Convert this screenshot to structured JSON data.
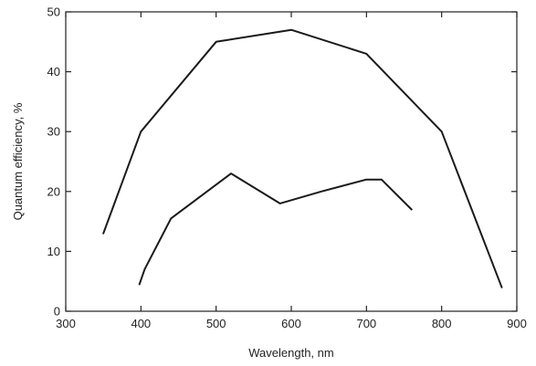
{
  "chart_data": {
    "type": "line",
    "title": "",
    "xlabel": "Wavelength, nm",
    "ylabel": "Quantum efficiency, %",
    "xlim": [
      300,
      900
    ],
    "ylim": [
      0,
      50
    ],
    "xticks": [
      300,
      400,
      500,
      600,
      700,
      800,
      900
    ],
    "yticks": [
      0,
      10,
      20,
      30,
      40,
      50
    ],
    "grid": false,
    "legend": "none",
    "series": [
      {
        "x": [
          350,
          400,
          500,
          600,
          700,
          800,
          880
        ],
        "y": [
          13,
          30,
          45,
          47,
          43,
          30,
          4
        ]
      },
      {
        "x": [
          398,
          405,
          440,
          520,
          585,
          640,
          700,
          720,
          760
        ],
        "y": [
          4.5,
          7,
          15.5,
          23,
          18,
          20,
          22,
          22,
          17
        ]
      }
    ]
  }
}
